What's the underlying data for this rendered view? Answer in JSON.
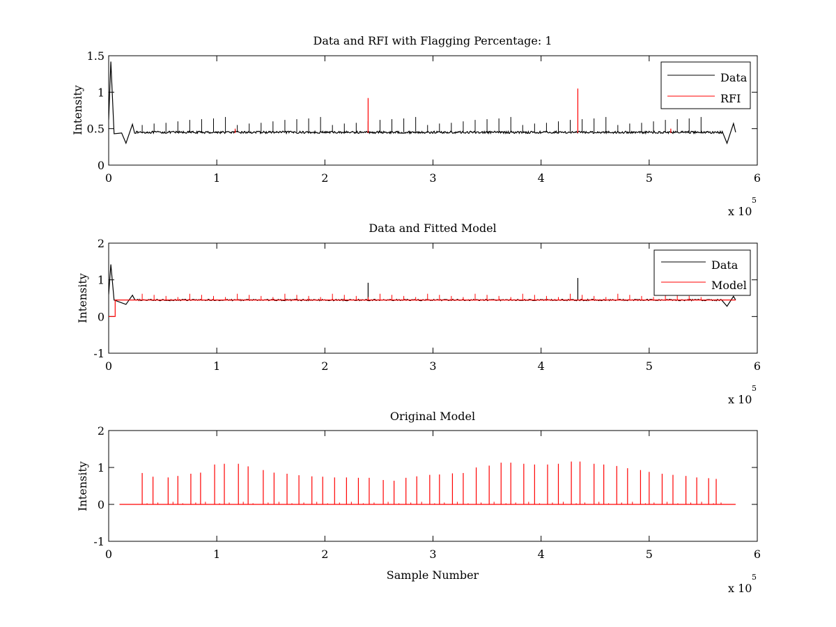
{
  "chart_data": [
    {
      "type": "line",
      "title": "Data and RFI with Flagging Percentage: 1",
      "xlabel": "",
      "ylabel": "Intensity",
      "xlim": [
        0,
        600000
      ],
      "ylim": [
        0,
        1.5
      ],
      "xticks": [
        0,
        1,
        2,
        3,
        4,
        5,
        6
      ],
      "yticks": [
        0,
        0.5,
        1,
        1.5
      ],
      "x_multiplier": {
        "base": "x 10",
        "power": "5"
      },
      "legend": {
        "position": "top-right",
        "entries": [
          "Data",
          "RFI"
        ]
      },
      "series": [
        {
          "name": "Data",
          "color": "#000000",
          "baseline": 0.45,
          "x_end": 580000,
          "features": [
            {
              "x": 2000,
              "y": 1.42
            },
            {
              "x": 5000,
              "y": 0.43
            },
            {
              "x": 16000,
              "y": 0.3
            },
            {
              "x": 22000,
              "y": 0.56
            },
            {
              "x": 572000,
              "y": 0.3
            },
            {
              "x": 578000,
              "y": 0.57
            }
          ],
          "spike_values": [
            0.55,
            0.57,
            0.58,
            0.6,
            0.62,
            0.63,
            0.64,
            0.66,
            0.9,
            1.04
          ]
        },
        {
          "name": "RFI",
          "color": "#ff0000",
          "spikes": [
            {
              "x": 240000,
              "y": 0.92
            },
            {
              "x": 434000,
              "y": 1.05
            },
            {
              "x": 117000,
              "y": 0.5
            },
            {
              "x": 520000,
              "y": 0.5
            }
          ]
        }
      ]
    },
    {
      "type": "line",
      "title": "Data and Fitted Model",
      "xlabel": "",
      "ylabel": "Intensity",
      "xlim": [
        0,
        600000
      ],
      "ylim": [
        -1,
        2
      ],
      "xticks": [
        0,
        1,
        2,
        3,
        4,
        5,
        6
      ],
      "yticks": [
        -1,
        0,
        1,
        2
      ],
      "x_multiplier": {
        "base": "x 10",
        "power": "5"
      },
      "legend": {
        "position": "top-right",
        "entries": [
          "Data",
          "Model"
        ]
      },
      "series": [
        {
          "name": "Data",
          "color": "#000000",
          "baseline": 0.45,
          "spikes": [
            {
              "x": 240000,
              "y": 0.92
            },
            {
              "x": 434000,
              "y": 1.05
            }
          ]
        },
        {
          "name": "Model",
          "color": "#ff0000",
          "baseline": 0.45,
          "start_value": 0.0,
          "step_x": 6000,
          "spike_max": 0.62
        }
      ]
    },
    {
      "type": "line",
      "title": "Original Model",
      "xlabel": "Sample Number",
      "ylabel": "Intensity",
      "xlim": [
        0,
        600000
      ],
      "ylim": [
        -1,
        2
      ],
      "xticks": [
        0,
        1,
        2,
        3,
        4,
        5,
        6
      ],
      "yticks": [
        -1,
        0,
        1,
        2
      ],
      "x_multiplier": {
        "base": "x 10",
        "power": "5"
      },
      "series": [
        {
          "name": "",
          "color": "#ff0000",
          "baseline": 0.0,
          "x_start": 10000,
          "x_end": 580000,
          "spikes": [
            {
              "x": 31000,
              "y": 0.85
            },
            {
              "x": 41000,
              "y": 0.75
            },
            {
              "x": 55000,
              "y": 0.73
            },
            {
              "x": 64000,
              "y": 0.77
            },
            {
              "x": 76000,
              "y": 0.83
            },
            {
              "x": 85000,
              "y": 0.86
            },
            {
              "x": 98000,
              "y": 1.08
            },
            {
              "x": 107000,
              "y": 1.1
            },
            {
              "x": 120000,
              "y": 1.1
            },
            {
              "x": 129000,
              "y": 1.03
            },
            {
              "x": 143000,
              "y": 0.93
            },
            {
              "x": 153000,
              "y": 0.86
            },
            {
              "x": 165000,
              "y": 0.83
            },
            {
              "x": 176000,
              "y": 0.79
            },
            {
              "x": 188000,
              "y": 0.76
            },
            {
              "x": 198000,
              "y": 0.75
            },
            {
              "x": 209000,
              "y": 0.73
            },
            {
              "x": 220000,
              "y": 0.73
            },
            {
              "x": 231000,
              "y": 0.72
            },
            {
              "x": 241000,
              "y": 0.72
            },
            {
              "x": 254000,
              "y": 0.66
            },
            {
              "x": 264000,
              "y": 0.64
            },
            {
              "x": 275000,
              "y": 0.72
            },
            {
              "x": 285000,
              "y": 0.76
            },
            {
              "x": 297000,
              "y": 0.8
            },
            {
              "x": 306000,
              "y": 0.81
            },
            {
              "x": 318000,
              "y": 0.84
            },
            {
              "x": 328000,
              "y": 0.85
            },
            {
              "x": 340000,
              "y": 1.0
            },
            {
              "x": 352000,
              "y": 1.05
            },
            {
              "x": 363000,
              "y": 1.13
            },
            {
              "x": 372000,
              "y": 1.13
            },
            {
              "x": 384000,
              "y": 1.1
            },
            {
              "x": 394000,
              "y": 1.08
            },
            {
              "x": 406000,
              "y": 1.08
            },
            {
              "x": 416000,
              "y": 1.1
            },
            {
              "x": 428000,
              "y": 1.16
            },
            {
              "x": 436000,
              "y": 1.16
            },
            {
              "x": 449000,
              "y": 1.1
            },
            {
              "x": 458000,
              "y": 1.08
            },
            {
              "x": 470000,
              "y": 1.04
            },
            {
              "x": 480000,
              "y": 0.98
            },
            {
              "x": 492000,
              "y": 0.93
            },
            {
              "x": 500000,
              "y": 0.88
            },
            {
              "x": 512000,
              "y": 0.83
            },
            {
              "x": 522000,
              "y": 0.8
            },
            {
              "x": 534000,
              "y": 0.77
            },
            {
              "x": 544000,
              "y": 0.73
            },
            {
              "x": 555000,
              "y": 0.71
            },
            {
              "x": 562000,
              "y": 0.69
            }
          ]
        }
      ]
    }
  ]
}
